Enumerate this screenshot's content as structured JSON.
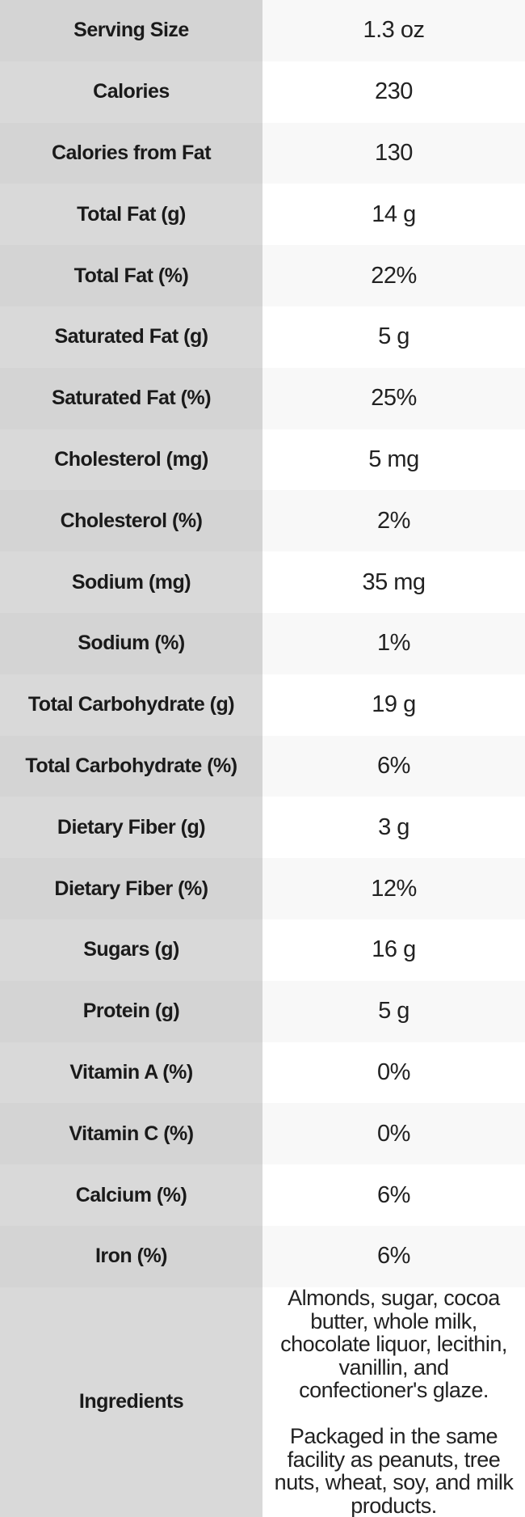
{
  "chart_data": {
    "type": "table",
    "title": "Nutrition facts table",
    "rows": [
      {
        "label": "Serving Size",
        "value": "1.3 oz"
      },
      {
        "label": "Calories",
        "value": "230"
      },
      {
        "label": "Calories from Fat",
        "value": "130"
      },
      {
        "label": "Total Fat (g)",
        "value": "14 g"
      },
      {
        "label": "Total Fat (%)",
        "value": "22%"
      },
      {
        "label": "Saturated Fat (g)",
        "value": "5 g"
      },
      {
        "label": "Saturated Fat (%)",
        "value": "25%"
      },
      {
        "label": "Cholesterol (mg)",
        "value": "5 mg"
      },
      {
        "label": "Cholesterol (%)",
        "value": "2%"
      },
      {
        "label": "Sodium (mg)",
        "value": "35 mg"
      },
      {
        "label": "Sodium (%)",
        "value": "1%"
      },
      {
        "label": "Total Carbohydrate (g)",
        "value": "19 g"
      },
      {
        "label": "Total Carbohydrate (%)",
        "value": "6%"
      },
      {
        "label": "Dietary Fiber (g)",
        "value": "3 g"
      },
      {
        "label": "Dietary Fiber (%)",
        "value": "12%"
      },
      {
        "label": "Sugars (g)",
        "value": "16 g"
      },
      {
        "label": "Protein (g)",
        "value": "5 g"
      },
      {
        "label": "Vitamin A (%)",
        "value": "0%"
      },
      {
        "label": "Vitamin C (%)",
        "value": "0%"
      },
      {
        "label": "Calcium (%)",
        "value": "6%"
      },
      {
        "label": "Iron (%)",
        "value": "6%"
      }
    ],
    "ingredients_row": {
      "label": "Ingredients",
      "value": "Almonds, sugar, cocoa\nbutter, whole milk,\nchocolate liquor, lecithin,\nvanillin, and\nconfectioner's glaze.\n\nPackaged in the same\nfacility as peanuts, tree\nnuts, wheat, soy, and milk\nproducts."
    },
    "layout": {
      "columns": 2,
      "grid": "off",
      "legend": "none"
    },
    "colors": {
      "label_col_row_odd": "#d4d4d4",
      "label_col_row_even": "#d9d9d9",
      "value_col_row_odd": "#f8f8f8",
      "value_col_row_even": "#ffffff",
      "label_text": "#1a1a1a",
      "value_text": "#222222"
    }
  }
}
